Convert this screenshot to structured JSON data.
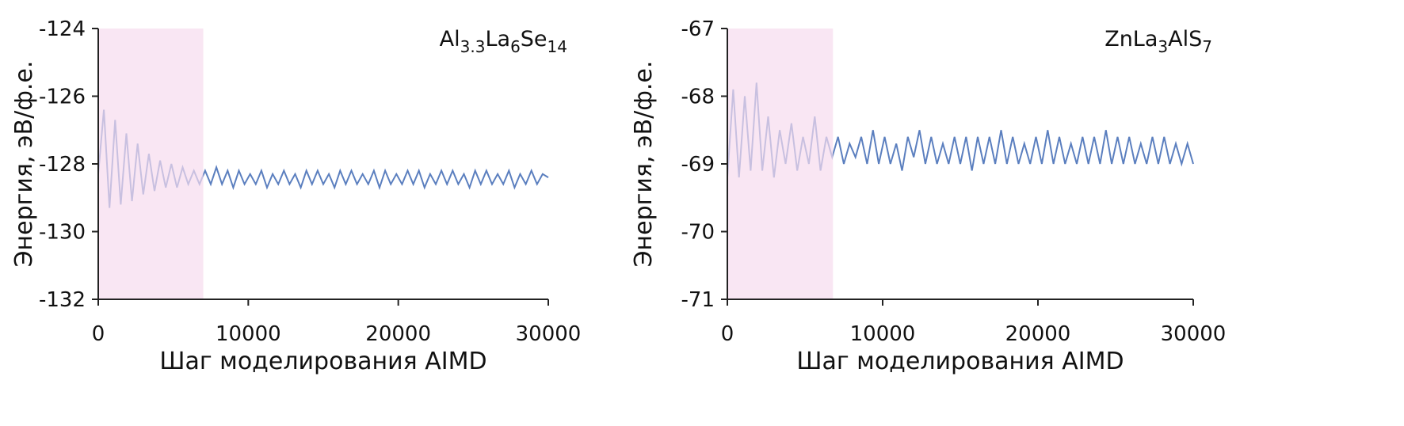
{
  "chart_data": [
    {
      "type": "line",
      "title_parts": [
        {
          "text": "Al"
        },
        {
          "text": "3.3",
          "sub": true
        },
        {
          "text": "La"
        },
        {
          "text": "6",
          "sub": true
        },
        {
          "text": "Se"
        },
        {
          "text": "14",
          "sub": true
        }
      ],
      "xlabel": "Шаг моделирования AIMD",
      "ylabel": "Энергия, эВ/ф.е.",
      "xlim": [
        0,
        30000
      ],
      "xticks": [
        0,
        10000,
        20000,
        30000
      ],
      "ylim": [
        -132,
        -124
      ],
      "yticks": [
        -124,
        -126,
        -128,
        -130,
        -132
      ],
      "color": "#5b7fbf",
      "highlight": {
        "range": [
          0,
          7000
        ],
        "color": "#f6dcee"
      },
      "x": [
        0,
        375,
        750,
        1125,
        1500,
        1875,
        2250,
        2625,
        3000,
        3375,
        3750,
        4125,
        4500,
        4875,
        5250,
        5625,
        6000,
        6375,
        6750,
        7125,
        7500,
        7875,
        8250,
        8625,
        9000,
        9375,
        9750,
        10125,
        10500,
        10875,
        11250,
        11625,
        12000,
        12375,
        12750,
        13125,
        13500,
        13875,
        14250,
        14625,
        15000,
        15375,
        15750,
        16125,
        16500,
        16875,
        17250,
        17625,
        18000,
        18375,
        18750,
        19125,
        19500,
        19875,
        20250,
        20625,
        21000,
        21375,
        21750,
        22125,
        22500,
        22875,
        23250,
        23625,
        24000,
        24375,
        24750,
        25125,
        25500,
        25875,
        26250,
        26625,
        27000,
        27375,
        27750,
        28125,
        28500,
        28875,
        29250,
        29625,
        30000
      ],
      "values": [
        -128.3,
        -126.4,
        -129.3,
        -126.7,
        -129.2,
        -127.1,
        -129.1,
        -127.4,
        -128.9,
        -127.7,
        -128.8,
        -127.9,
        -128.7,
        -128.0,
        -128.7,
        -128.1,
        -128.6,
        -128.2,
        -128.6,
        -128.2,
        -128.6,
        -128.1,
        -128.6,
        -128.2,
        -128.7,
        -128.2,
        -128.6,
        -128.3,
        -128.6,
        -128.2,
        -128.7,
        -128.3,
        -128.6,
        -128.2,
        -128.6,
        -128.3,
        -128.7,
        -128.2,
        -128.6,
        -128.2,
        -128.6,
        -128.3,
        -128.7,
        -128.2,
        -128.6,
        -128.2,
        -128.6,
        -128.3,
        -128.6,
        -128.2,
        -128.7,
        -128.2,
        -128.6,
        -128.3,
        -128.6,
        -128.2,
        -128.6,
        -128.2,
        -128.7,
        -128.3,
        -128.6,
        -128.2,
        -128.6,
        -128.2,
        -128.6,
        -128.3,
        -128.7,
        -128.2,
        -128.6,
        -128.2,
        -128.6,
        -128.3,
        -128.6,
        -128.2,
        -128.7,
        -128.3,
        -128.6,
        -128.2,
        -128.6,
        -128.3,
        -128.4
      ]
    },
    {
      "type": "line",
      "title_parts": [
        {
          "text": "ZnLa"
        },
        {
          "text": "3",
          "sub": true
        },
        {
          "text": "AlS"
        },
        {
          "text": "7",
          "sub": true
        }
      ],
      "xlabel": "Шаг моделирования AIMD",
      "ylabel": "Энергия, эВ/ф.е.",
      "xlim": [
        0,
        30000
      ],
      "xticks": [
        0,
        10000,
        20000,
        30000
      ],
      "ylim": [
        -71,
        -67
      ],
      "yticks": [
        -67,
        -68,
        -69,
        -70,
        -71
      ],
      "color": "#5b7fbf",
      "highlight": {
        "range": [
          0,
          6800
        ],
        "color": "#f6dcee"
      },
      "x": [
        0,
        375,
        750,
        1125,
        1500,
        1875,
        2250,
        2625,
        3000,
        3375,
        3750,
        4125,
        4500,
        4875,
        5250,
        5625,
        6000,
        6375,
        6750,
        7125,
        7500,
        7875,
        8250,
        8625,
        9000,
        9375,
        9750,
        10125,
        10500,
        10875,
        11250,
        11625,
        12000,
        12375,
        12750,
        13125,
        13500,
        13875,
        14250,
        14625,
        15000,
        15375,
        15750,
        16125,
        16500,
        16875,
        17250,
        17625,
        18000,
        18375,
        18750,
        19125,
        19500,
        19875,
        20250,
        20625,
        21000,
        21375,
        21750,
        22125,
        22500,
        22875,
        23250,
        23625,
        24000,
        24375,
        24750,
        25125,
        25500,
        25875,
        26250,
        26625,
        27000,
        27375,
        27750,
        28125,
        28500,
        28875,
        29250,
        29625,
        30000
      ],
      "values": [
        -69.2,
        -67.9,
        -69.2,
        -68.0,
        -69.1,
        -67.8,
        -69.1,
        -68.3,
        -69.2,
        -68.5,
        -69.0,
        -68.4,
        -69.1,
        -68.6,
        -69.0,
        -68.3,
        -69.1,
        -68.6,
        -68.9,
        -68.6,
        -69.0,
        -68.7,
        -68.9,
        -68.6,
        -69.0,
        -68.5,
        -69.0,
        -68.6,
        -69.0,
        -68.7,
        -69.1,
        -68.6,
        -68.9,
        -68.5,
        -69.0,
        -68.6,
        -69.0,
        -68.7,
        -69.0,
        -68.6,
        -69.0,
        -68.6,
        -69.1,
        -68.6,
        -69.0,
        -68.6,
        -69.0,
        -68.5,
        -69.0,
        -68.6,
        -69.0,
        -68.7,
        -69.0,
        -68.6,
        -69.0,
        -68.5,
        -69.0,
        -68.6,
        -69.0,
        -68.7,
        -69.0,
        -68.6,
        -69.0,
        -68.6,
        -69.0,
        -68.5,
        -69.0,
        -68.6,
        -69.0,
        -68.6,
        -69.0,
        -68.7,
        -69.0,
        -68.6,
        -69.0,
        -68.6,
        -69.0,
        -68.7,
        -69.0,
        -68.7,
        -69.0
      ]
    }
  ]
}
